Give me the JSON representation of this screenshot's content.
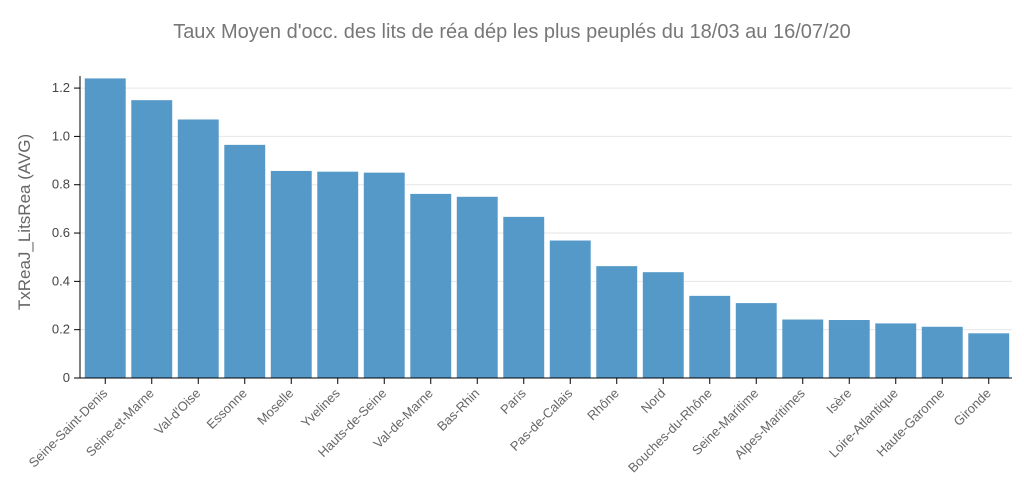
{
  "chart_data": {
    "type": "bar",
    "title": "Taux Moyen d'occ. des lits de réa dép les plus peuplés du 18/03 au 16/07/20",
    "xlabel": "",
    "ylabel": "TxReaJ_LitsRea (AVG)",
    "ylim": [
      0,
      1.25
    ],
    "yticks": [
      "0",
      "0.2",
      "0.4",
      "0.6",
      "0.8",
      "1.0",
      "1.2"
    ],
    "grid": true,
    "bar_color": "#5599c9",
    "categories": [
      "Seine-Saint-Denis",
      "Seine-et-Marne",
      "Val-d'Oise",
      "Essonne",
      "Moselle",
      "Yvelines",
      "Hauts-de-Seine",
      "Val-de-Marne",
      "Bas-Rhin",
      "Paris",
      "Pas-de-Calais",
      "Rhône",
      "Nord",
      "Bouches-du-Rhône",
      "Seine-Maritime",
      "Alpes-Maritimes",
      "Isère",
      "Loire-Atlantique",
      "Haute-Garonne",
      "Gironde"
    ],
    "values": [
      1.24,
      1.15,
      1.07,
      0.965,
      0.857,
      0.854,
      0.85,
      0.762,
      0.75,
      0.667,
      0.569,
      0.463,
      0.438,
      0.34,
      0.31,
      0.242,
      0.24,
      0.226,
      0.212,
      0.185
    ]
  }
}
